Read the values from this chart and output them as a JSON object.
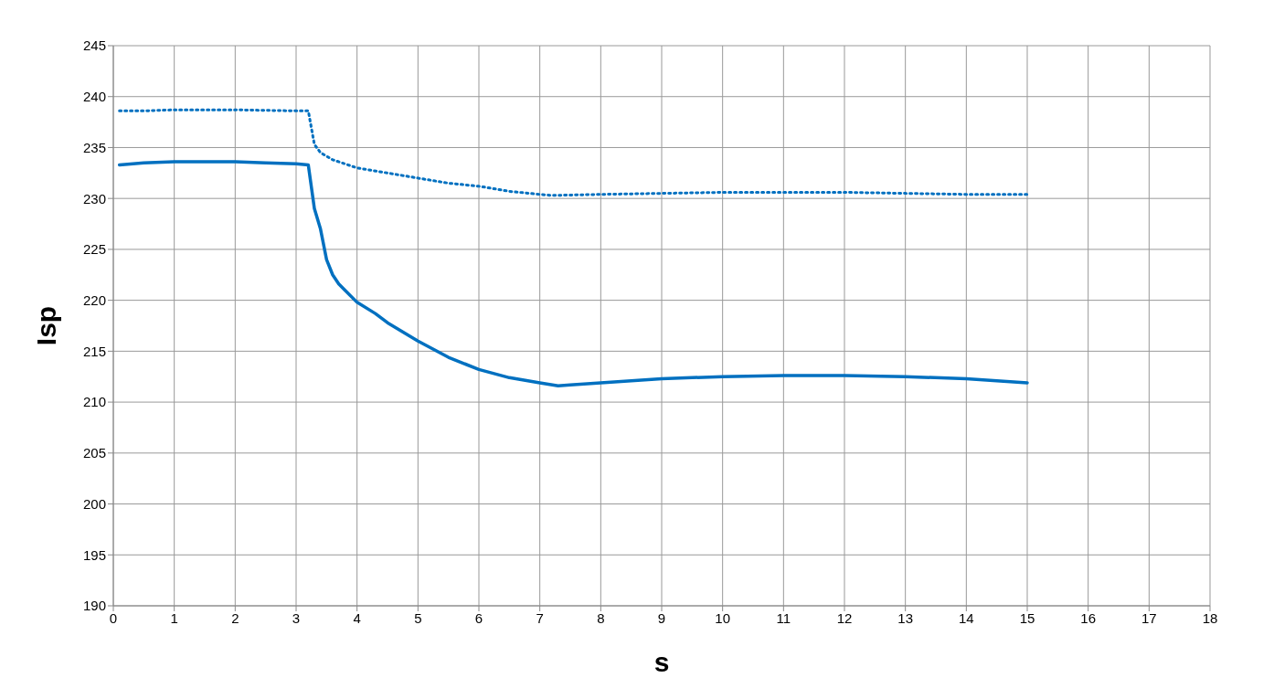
{
  "chart_data": {
    "type": "line",
    "xlabel": "s",
    "ylabel": "Isp",
    "xlim": [
      0,
      18
    ],
    "xticks": [
      0,
      1,
      2,
      3,
      4,
      5,
      6,
      7,
      8,
      9,
      10,
      11,
      12,
      13,
      14,
      15,
      16,
      17,
      18
    ],
    "ylim": [
      190,
      245
    ],
    "yticks": [
      190,
      195,
      200,
      205,
      210,
      215,
      220,
      225,
      230,
      235,
      240,
      245
    ],
    "grid": true,
    "marker": "none",
    "series": [
      {
        "color": "#0070c0",
        "line_style": "dotted",
        "x": [
          0.1,
          0.5,
          1,
          2,
          3,
          3.2,
          3.3,
          3.4,
          3.6,
          4,
          4.5,
          5,
          5.5,
          6,
          6.5,
          7,
          7.2,
          8,
          9,
          10,
          11,
          12,
          13,
          14,
          15
        ],
        "values": [
          238.6,
          238.6,
          238.7,
          238.7,
          238.6,
          238.6,
          235.3,
          234.5,
          233.8,
          233,
          232.5,
          232,
          231.5,
          231.2,
          230.7,
          230.4,
          230.3,
          230.4,
          230.5,
          230.6,
          230.6,
          230.6,
          230.5,
          230.4,
          230.4
        ]
      },
      {
        "color": "#0070c0",
        "line_style": "solid",
        "x": [
          0.1,
          0.5,
          1,
          1.5,
          2,
          2.5,
          3,
          3.2,
          3.3,
          3.4,
          3.5,
          3.6,
          3.7,
          3.8,
          4,
          4.3,
          4.5,
          5,
          5.5,
          6,
          6.5,
          7,
          7.3,
          7.5,
          8,
          9,
          10,
          11,
          12,
          13,
          14,
          15
        ],
        "values": [
          233.3,
          233.5,
          233.6,
          233.6,
          233.6,
          233.5,
          233.4,
          233.3,
          229,
          227,
          224,
          222.5,
          221.6,
          221,
          219.8,
          218.7,
          217.8,
          216,
          214.4,
          213.2,
          212.4,
          211.9,
          211.6,
          211.7,
          211.9,
          212.3,
          212.5,
          212.6,
          212.6,
          212.5,
          212.3,
          211.9
        ]
      }
    ]
  }
}
